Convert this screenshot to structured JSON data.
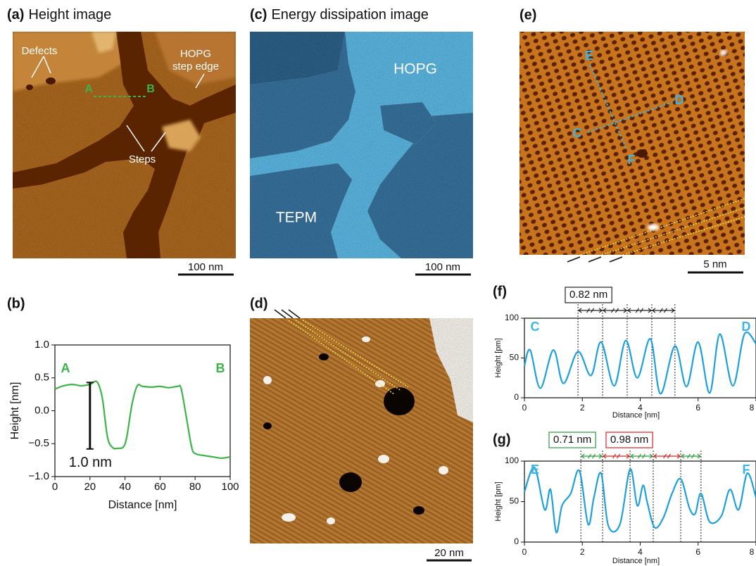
{
  "image_panels": {
    "a": {
      "label": "(a)",
      "title": "Height image",
      "annotations": {
        "defects": "Defects",
        "step_edge": [
          "HOPG",
          "step edge"
        ],
        "point_a": "A",
        "point_b": "B",
        "steps": "Steps"
      },
      "scale_bar": "100 nm"
    },
    "c": {
      "label": "(c)",
      "title": "Energy dissipation image",
      "annotations": {
        "hopg": "HOPG",
        "tepm": "TEPM"
      },
      "scale_bar": "100 nm"
    },
    "d": {
      "label": "(d)",
      "scale_bar": "20 nm"
    },
    "e": {
      "label": "(e)",
      "annotations": {
        "c": "C",
        "d": "D",
        "e": "E",
        "f": "F"
      },
      "scale_bar": "5 nm"
    }
  },
  "chart_data": [
    {
      "type": "line",
      "label": "(b)",
      "x_label": "Distance [nm]",
      "y_label": "Height [nm]",
      "x": [
        0,
        5,
        10,
        15,
        20,
        24,
        27,
        30,
        33,
        36,
        39,
        41,
        44,
        47,
        50,
        55,
        60,
        65,
        70,
        72,
        75,
        78,
        80,
        85,
        90,
        95,
        100
      ],
      "values": [
        0.33,
        0.38,
        0.4,
        0.38,
        0.4,
        0.44,
        0.2,
        -0.4,
        -0.56,
        -0.57,
        -0.55,
        -0.4,
        0.1,
        0.38,
        0.37,
        0.36,
        0.37,
        0.35,
        0.37,
        0.34,
        -0.1,
        -0.55,
        -0.65,
        -0.68,
        -0.7,
        -0.72,
        -0.7
      ],
      "color": "#3cb44a",
      "xlim": [
        0,
        100
      ],
      "xticks": [
        0,
        20,
        40,
        60,
        80,
        100
      ],
      "ylim": [
        -1,
        1
      ],
      "yticks": [
        {
          "value": -1,
          "label": "−1.0"
        },
        {
          "value": -0.5,
          "label": "−0.5"
        },
        {
          "value": 0,
          "label": "0.0"
        },
        {
          "value": 0.5,
          "label": "0.5"
        },
        {
          "value": 1,
          "label": "1.0"
        }
      ],
      "annotations": [
        "A",
        "B"
      ],
      "scale_bar": {
        "x": 20,
        "y": [
          -0.58,
          0.43
        ],
        "label": "1.0 nm"
      }
    },
    {
      "type": "line",
      "label": "(f)",
      "x_label": "Distance [nm]",
      "y_label": "Height [pm]",
      "x": [
        0,
        0.2,
        0.55,
        1.0,
        1.35,
        1.85,
        2.3,
        2.65,
        3.1,
        3.5,
        3.9,
        4.35,
        4.7,
        5.2,
        5.6,
        6.0,
        6.4,
        6.75,
        7.2,
        7.6,
        8.0
      ],
      "values": [
        40,
        60,
        12,
        60,
        18,
        58,
        28,
        70,
        15,
        72,
        25,
        74,
        5,
        65,
        14,
        70,
        6,
        80,
        15,
        80,
        68
      ],
      "color": "#1ea0dc",
      "xlim": [
        0,
        8
      ],
      "xticks": [
        0,
        2,
        4,
        6,
        8
      ],
      "ylim": [
        0,
        100
      ],
      "yticks": [
        0,
        50,
        100
      ],
      "annotations": [
        "C",
        "D"
      ],
      "guides": [
        1.85,
        2.7,
        3.55,
        4.4,
        5.2
      ],
      "interval_colors": [
        "#222222",
        "#222222",
        "#222222",
        "#222222"
      ],
      "period_labels": [
        {
          "text": "0.82 nm",
          "color": "#222222"
        }
      ]
    },
    {
      "type": "line",
      "label": "(g)",
      "x_label": "Distance [nm]",
      "y_label": "Height [pm]",
      "x": [
        0,
        0.35,
        0.7,
        0.9,
        1.1,
        1.3,
        1.6,
        1.9,
        2.2,
        2.4,
        2.65,
        2.9,
        3.3,
        3.65,
        3.9,
        4.1,
        4.25,
        4.5,
        4.8,
        5.1,
        5.4,
        5.7,
        5.9,
        6.1,
        6.4,
        6.8,
        7.1,
        7.4,
        7.7,
        8.0
      ],
      "values": [
        62,
        92,
        40,
        65,
        12,
        45,
        60,
        88,
        22,
        55,
        85,
        20,
        22,
        90,
        45,
        70,
        48,
        18,
        30,
        60,
        78,
        42,
        35,
        60,
        25,
        32,
        65,
        40,
        85,
        55
      ],
      "color": "#1ea0dc",
      "xlim": [
        0,
        8
      ],
      "xticks": [
        0,
        2,
        4,
        6,
        8
      ],
      "ylim": [
        0,
        100
      ],
      "yticks": [
        0,
        50,
        100
      ],
      "annotations": [
        "E",
        "F"
      ],
      "guides": [
        1.95,
        2.7,
        3.65,
        4.45,
        5.4,
        6.1
      ],
      "interval_colors": [
        "#2a9d3a",
        "#e02020",
        "#2a9d3a",
        "#e02020",
        "#2a9d3a"
      ],
      "period_labels": [
        {
          "text": "0.71 nm",
          "color": "#2a9d3a"
        },
        {
          "text": "0.98 nm",
          "color": "#e02020"
        }
      ]
    }
  ]
}
